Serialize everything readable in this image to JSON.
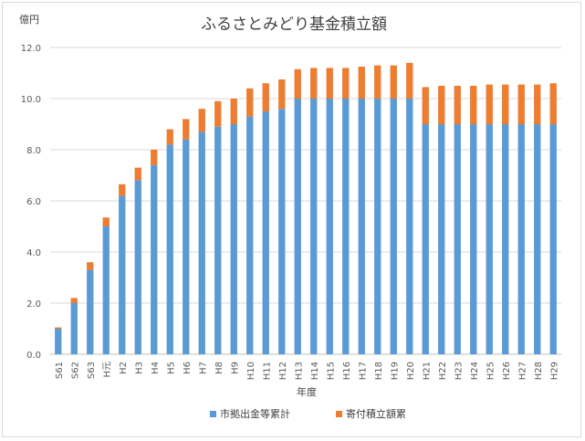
{
  "chart_data": {
    "type": "bar",
    "stacked": true,
    "title": "ふるさとみどり基金積立額",
    "yunit": "億円",
    "xlabel": "年度",
    "ylim": [
      0,
      12
    ],
    "yticks": [
      0,
      2,
      4,
      6,
      8,
      10,
      12
    ],
    "ytick_labels": [
      "0.0",
      "2.0",
      "4.0",
      "6.0",
      "8.0",
      "10.0",
      "12.0"
    ],
    "grid": true,
    "legend_position": "bottom",
    "categories": [
      "S61",
      "S62",
      "S63",
      "H元",
      "H2",
      "H3",
      "H4",
      "H5",
      "H6",
      "H7",
      "H8",
      "H9",
      "H10",
      "H11",
      "H12",
      "H13",
      "H14",
      "H15",
      "H16",
      "H17",
      "H18",
      "H19",
      "H20",
      "H21",
      "H22",
      "H23",
      "H24",
      "H25",
      "H26",
      "H27",
      "H28",
      "H29"
    ],
    "series": [
      {
        "name": "市拠出金等累計",
        "color": "#5b9bd5",
        "values": [
          1.0,
          2.0,
          3.3,
          5.0,
          6.2,
          6.8,
          7.4,
          8.2,
          8.4,
          8.7,
          8.9,
          9.0,
          9.3,
          9.5,
          9.6,
          10.0,
          10.0,
          10.0,
          10.0,
          10.0,
          10.0,
          10.0,
          10.0,
          9.0,
          9.0,
          9.0,
          9.0,
          9.0,
          9.0,
          9.0,
          9.0,
          9.0
        ]
      },
      {
        "name": "寄付積立額累",
        "color": "#ed7d31",
        "values": [
          0.05,
          0.2,
          0.3,
          0.35,
          0.45,
          0.5,
          0.6,
          0.6,
          0.8,
          0.9,
          1.0,
          1.0,
          1.1,
          1.1,
          1.15,
          1.15,
          1.2,
          1.2,
          1.2,
          1.25,
          1.3,
          1.3,
          1.4,
          1.45,
          1.5,
          1.5,
          1.5,
          1.55,
          1.55,
          1.55,
          1.55,
          1.6
        ]
      }
    ]
  }
}
